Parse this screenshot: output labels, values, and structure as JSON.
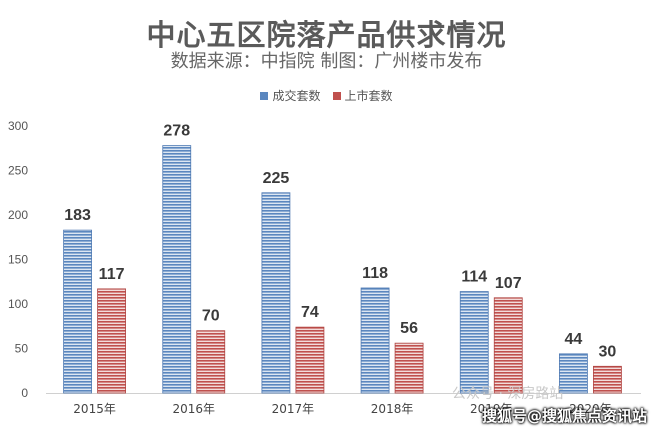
{
  "header": {
    "title": "中心五区院落产品供求情况",
    "subtitle": "数据来源：中指院 制图：广州楼市发布"
  },
  "watermark": {
    "wechat_text": "公众号 · 深房路站",
    "sohu_text": "搜狐号@搜狐焦点资讯站"
  },
  "chart_data": {
    "type": "bar",
    "categories": [
      "2015年",
      "2016年",
      "2017年",
      "2018年",
      "2019年",
      "2020年"
    ],
    "series": [
      {
        "name": "成交套数",
        "color": "#5b87bf",
        "values": [
          183,
          278,
          225,
          118,
          114,
          44
        ]
      },
      {
        "name": "上市套数",
        "color": "#c0504d",
        "values": [
          117,
          70,
          74,
          56,
          107,
          30
        ]
      }
    ],
    "yticks": [
      0,
      50,
      100,
      150,
      200,
      250,
      300
    ],
    "ylim": [
      0,
      300
    ],
    "grid": false,
    "legend": "top-center",
    "data_labels": true
  }
}
